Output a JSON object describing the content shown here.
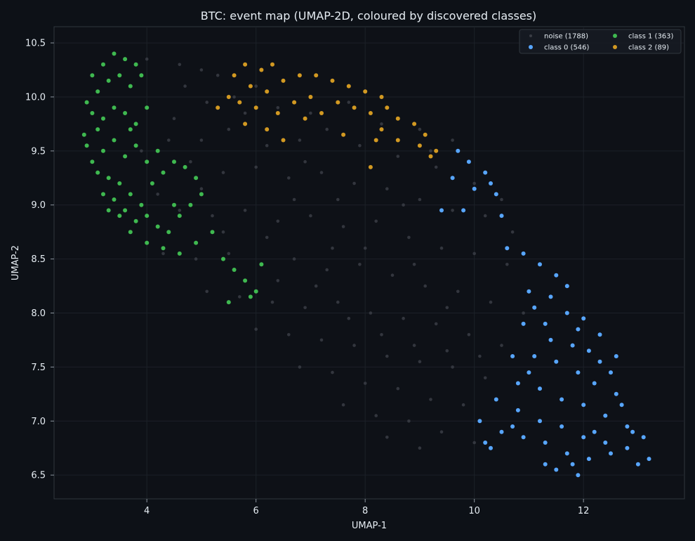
{
  "chart_data": {
    "type": "scatter",
    "title": "BTC: event map (UMAP-2D, coloured by discovered classes)",
    "xlabel": "UMAP-1",
    "ylabel": "UMAP-2",
    "xlim": [
      2.3,
      13.85
    ],
    "ylim": [
      6.28,
      10.65
    ],
    "xticks": [
      4,
      6,
      8,
      10,
      12
    ],
    "yticks": [
      6.5,
      7.0,
      7.5,
      8.0,
      8.5,
      9.0,
      9.5,
      10.0,
      10.5
    ],
    "grid": true,
    "legend_position": "top-right",
    "background": "#0d1117",
    "series": [
      {
        "name": "noise (1788)",
        "count": 1788,
        "color": "#3a3d45",
        "points": [
          [
            4.0,
            10.35
          ],
          [
            4.6,
            10.3
          ],
          [
            5.0,
            10.25
          ],
          [
            5.3,
            10.2
          ],
          [
            4.7,
            10.1
          ],
          [
            5.1,
            9.95
          ],
          [
            5.6,
            10.0
          ],
          [
            6.0,
            10.1
          ],
          [
            6.4,
            9.9
          ],
          [
            7.0,
            9.85
          ],
          [
            7.7,
            9.95
          ],
          [
            8.3,
            9.75
          ],
          [
            9.0,
            9.7
          ],
          [
            9.6,
            9.6
          ],
          [
            4.5,
            9.8
          ],
          [
            5.0,
            9.6
          ],
          [
            5.5,
            9.7
          ],
          [
            6.2,
            9.55
          ],
          [
            6.8,
            9.6
          ],
          [
            7.3,
            9.7
          ],
          [
            7.9,
            9.55
          ],
          [
            8.6,
            9.45
          ],
          [
            9.3,
            9.35
          ],
          [
            10.0,
            9.2
          ],
          [
            10.5,
            9.05
          ],
          [
            4.8,
            9.4
          ],
          [
            5.4,
            9.3
          ],
          [
            6.0,
            9.35
          ],
          [
            6.6,
            9.25
          ],
          [
            7.2,
            9.3
          ],
          [
            7.8,
            9.2
          ],
          [
            8.4,
            9.15
          ],
          [
            9.0,
            9.05
          ],
          [
            9.6,
            8.95
          ],
          [
            10.2,
            8.9
          ],
          [
            10.7,
            8.75
          ],
          [
            4.6,
            8.95
          ],
          [
            5.2,
            8.9
          ],
          [
            5.8,
            8.95
          ],
          [
            6.4,
            8.85
          ],
          [
            7.0,
            8.9
          ],
          [
            7.6,
            8.8
          ],
          [
            8.2,
            8.85
          ],
          [
            8.8,
            8.7
          ],
          [
            9.4,
            8.6
          ],
          [
            10.0,
            8.55
          ],
          [
            10.6,
            8.45
          ],
          [
            4.3,
            8.55
          ],
          [
            4.9,
            8.5
          ],
          [
            5.5,
            8.55
          ],
          [
            6.1,
            8.45
          ],
          [
            6.7,
            8.5
          ],
          [
            7.3,
            8.4
          ],
          [
            7.9,
            8.45
          ],
          [
            8.5,
            8.35
          ],
          [
            9.1,
            8.25
          ],
          [
            9.7,
            8.2
          ],
          [
            10.3,
            8.1
          ],
          [
            10.9,
            8.0
          ],
          [
            5.1,
            8.2
          ],
          [
            5.7,
            8.15
          ],
          [
            6.3,
            8.1
          ],
          [
            6.9,
            8.05
          ],
          [
            7.5,
            8.1
          ],
          [
            8.1,
            8.0
          ],
          [
            8.7,
            7.95
          ],
          [
            9.3,
            7.9
          ],
          [
            9.9,
            7.8
          ],
          [
            10.5,
            7.7
          ],
          [
            6.0,
            7.85
          ],
          [
            6.6,
            7.8
          ],
          [
            7.2,
            7.75
          ],
          [
            7.8,
            7.7
          ],
          [
            8.4,
            7.6
          ],
          [
            9.0,
            7.55
          ],
          [
            9.6,
            7.5
          ],
          [
            10.2,
            7.4
          ],
          [
            6.8,
            7.5
          ],
          [
            7.4,
            7.45
          ],
          [
            8.0,
            7.35
          ],
          [
            8.6,
            7.3
          ],
          [
            9.2,
            7.2
          ],
          [
            9.8,
            7.15
          ],
          [
            7.6,
            7.15
          ],
          [
            8.2,
            7.05
          ],
          [
            8.8,
            7.0
          ],
          [
            9.4,
            6.9
          ],
          [
            10.0,
            6.8
          ],
          [
            8.4,
            6.85
          ],
          [
            9.0,
            6.75
          ],
          [
            3.9,
            9.5
          ],
          [
            4.2,
            9.1
          ],
          [
            5.8,
            9.85
          ],
          [
            6.9,
            9.4
          ],
          [
            7.5,
            9.05
          ],
          [
            8.0,
            8.6
          ],
          [
            8.9,
            8.45
          ],
          [
            9.5,
            8.05
          ],
          [
            10.1,
            7.6
          ],
          [
            6.4,
            8.3
          ],
          [
            7.1,
            8.25
          ],
          [
            7.7,
            7.95
          ],
          [
            8.3,
            7.8
          ],
          [
            8.9,
            7.7
          ],
          [
            9.5,
            7.65
          ],
          [
            5.4,
            8.75
          ],
          [
            6.7,
            9.05
          ],
          [
            9.2,
            9.5
          ],
          [
            8.7,
            9.0
          ],
          [
            7.4,
            8.6
          ],
          [
            6.2,
            8.7
          ],
          [
            5.0,
            9.15
          ],
          [
            4.4,
            9.6
          ]
        ]
      },
      {
        "name": "class 0 (546)",
        "count": 546,
        "color": "#58a6ff",
        "points": [
          [
            9.7,
            9.5
          ],
          [
            9.9,
            9.4
          ],
          [
            10.2,
            9.3
          ],
          [
            10.0,
            9.15
          ],
          [
            10.4,
            9.1
          ],
          [
            9.8,
            8.95
          ],
          [
            10.5,
            8.9
          ],
          [
            10.6,
            8.6
          ],
          [
            10.9,
            8.55
          ],
          [
            11.2,
            8.45
          ],
          [
            11.5,
            8.35
          ],
          [
            11.0,
            8.2
          ],
          [
            11.4,
            8.15
          ],
          [
            11.7,
            8.0
          ],
          [
            11.9,
            7.85
          ],
          [
            11.3,
            7.9
          ],
          [
            11.8,
            7.7
          ],
          [
            12.1,
            7.65
          ],
          [
            12.3,
            7.55
          ],
          [
            12.5,
            7.45
          ],
          [
            11.1,
            7.6
          ],
          [
            11.5,
            7.55
          ],
          [
            11.9,
            7.45
          ],
          [
            12.2,
            7.35
          ],
          [
            12.6,
            7.25
          ],
          [
            10.8,
            7.35
          ],
          [
            11.2,
            7.3
          ],
          [
            11.6,
            7.2
          ],
          [
            12.0,
            7.15
          ],
          [
            12.4,
            7.05
          ],
          [
            12.8,
            6.95
          ],
          [
            13.1,
            6.85
          ],
          [
            10.4,
            7.2
          ],
          [
            10.8,
            7.1
          ],
          [
            11.2,
            7.0
          ],
          [
            11.6,
            6.95
          ],
          [
            12.0,
            6.85
          ],
          [
            12.4,
            6.8
          ],
          [
            12.8,
            6.75
          ],
          [
            13.2,
            6.65
          ],
          [
            10.1,
            7.0
          ],
          [
            10.5,
            6.9
          ],
          [
            10.9,
            6.85
          ],
          [
            11.3,
            6.8
          ],
          [
            11.7,
            6.7
          ],
          [
            12.1,
            6.65
          ],
          [
            12.5,
            6.7
          ],
          [
            13.0,
            6.6
          ],
          [
            11.5,
            6.55
          ],
          [
            11.9,
            6.5
          ],
          [
            10.3,
            6.75
          ],
          [
            10.7,
            6.95
          ],
          [
            11.0,
            7.45
          ],
          [
            11.4,
            7.75
          ],
          [
            11.7,
            8.25
          ],
          [
            11.1,
            8.05
          ],
          [
            12.7,
            7.15
          ],
          [
            12.9,
            6.9
          ],
          [
            11.3,
            6.6
          ],
          [
            10.2,
            6.8
          ],
          [
            11.8,
            6.6
          ],
          [
            12.2,
            6.9
          ],
          [
            12.0,
            7.95
          ],
          [
            10.7,
            7.6
          ],
          [
            10.9,
            7.9
          ],
          [
            12.6,
            7.6
          ],
          [
            12.3,
            7.8
          ],
          [
            9.4,
            8.95
          ],
          [
            9.6,
            9.25
          ],
          [
            10.3,
            9.2
          ]
        ]
      },
      {
        "name": "class 1 (363)",
        "count": 363,
        "color": "#3fb950",
        "points": [
          [
            3.0,
            10.2
          ],
          [
            3.1,
            10.05
          ],
          [
            3.2,
            10.3
          ],
          [
            3.4,
            10.4
          ],
          [
            3.6,
            10.35
          ],
          [
            3.8,
            10.3
          ],
          [
            3.3,
            10.15
          ],
          [
            3.5,
            10.2
          ],
          [
            3.7,
            10.1
          ],
          [
            3.9,
            10.2
          ],
          [
            2.9,
            9.95
          ],
          [
            3.0,
            9.85
          ],
          [
            3.1,
            9.7
          ],
          [
            2.85,
            9.65
          ],
          [
            3.2,
            9.8
          ],
          [
            3.4,
            9.9
          ],
          [
            3.6,
            9.85
          ],
          [
            3.8,
            9.75
          ],
          [
            4.0,
            9.9
          ],
          [
            2.9,
            9.55
          ],
          [
            3.0,
            9.4
          ],
          [
            3.2,
            9.5
          ],
          [
            3.4,
            9.6
          ],
          [
            3.6,
            9.45
          ],
          [
            3.8,
            9.55
          ],
          [
            3.1,
            9.3
          ],
          [
            3.3,
            9.25
          ],
          [
            3.5,
            9.2
          ],
          [
            3.7,
            9.1
          ],
          [
            3.9,
            9.0
          ],
          [
            4.1,
            9.2
          ],
          [
            4.3,
            9.3
          ],
          [
            4.5,
            9.4
          ],
          [
            4.7,
            9.35
          ],
          [
            4.9,
            9.25
          ],
          [
            3.4,
            9.05
          ],
          [
            3.6,
            8.95
          ],
          [
            3.8,
            8.85
          ],
          [
            4.0,
            8.9
          ],
          [
            4.2,
            8.8
          ],
          [
            4.4,
            8.75
          ],
          [
            4.6,
            8.9
          ],
          [
            4.8,
            9.0
          ],
          [
            5.0,
            9.1
          ],
          [
            3.5,
            8.9
          ],
          [
            3.7,
            8.75
          ],
          [
            4.0,
            8.65
          ],
          [
            4.3,
            8.6
          ],
          [
            4.6,
            8.55
          ],
          [
            4.9,
            8.65
          ],
          [
            5.2,
            8.75
          ],
          [
            5.4,
            8.5
          ],
          [
            5.6,
            8.4
          ],
          [
            5.8,
            8.3
          ],
          [
            6.0,
            8.2
          ],
          [
            5.9,
            8.15
          ],
          [
            5.5,
            8.1
          ],
          [
            6.1,
            8.45
          ],
          [
            3.2,
            9.1
          ],
          [
            3.3,
            8.95
          ],
          [
            4.2,
            9.5
          ],
          [
            4.5,
            9.0
          ],
          [
            4.0,
            9.4
          ],
          [
            3.7,
            9.7
          ]
        ]
      },
      {
        "name": "class 2 (89)",
        "count": 89,
        "color": "#d29922",
        "points": [
          [
            5.8,
            10.3
          ],
          [
            6.1,
            10.25
          ],
          [
            6.3,
            10.3
          ],
          [
            5.6,
            10.2
          ],
          [
            5.9,
            10.1
          ],
          [
            6.2,
            10.05
          ],
          [
            6.5,
            10.15
          ],
          [
            6.8,
            10.2
          ],
          [
            5.5,
            10.0
          ],
          [
            5.7,
            9.95
          ],
          [
            6.0,
            9.9
          ],
          [
            6.4,
            9.85
          ],
          [
            6.7,
            9.95
          ],
          [
            7.1,
            10.2
          ],
          [
            7.4,
            10.15
          ],
          [
            7.7,
            10.1
          ],
          [
            8.0,
            10.05
          ],
          [
            7.5,
            9.95
          ],
          [
            7.2,
            9.85
          ],
          [
            7.8,
            9.9
          ],
          [
            8.1,
            9.85
          ],
          [
            8.4,
            9.9
          ],
          [
            8.6,
            9.8
          ],
          [
            8.9,
            9.75
          ],
          [
            8.3,
            9.7
          ],
          [
            8.6,
            9.6
          ],
          [
            9.0,
            9.55
          ],
          [
            9.2,
            9.45
          ],
          [
            5.8,
            9.75
          ],
          [
            6.2,
            9.7
          ],
          [
            6.5,
            9.6
          ],
          [
            7.6,
            9.65
          ],
          [
            7.0,
            10.0
          ],
          [
            6.9,
            9.8
          ],
          [
            8.1,
            9.35
          ],
          [
            8.2,
            9.6
          ],
          [
            9.1,
            9.65
          ],
          [
            5.3,
            9.9
          ],
          [
            8.3,
            10.0
          ],
          [
            9.3,
            9.5
          ]
        ]
      }
    ]
  }
}
